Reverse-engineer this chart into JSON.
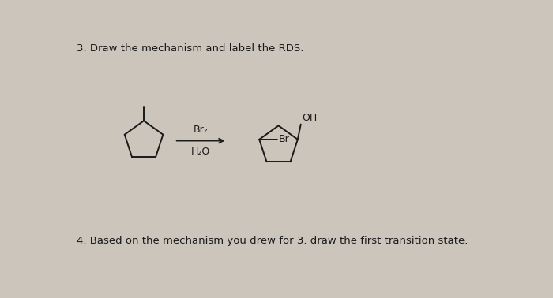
{
  "bg_color": "#ccc5bc",
  "text_color": "#1a1a1a",
  "q3_text": "3. Draw the mechanism and label the RDS.",
  "q4_text": "4. Based on the mechanism you drew for 3. draw the first transition state.",
  "reagent_top": "Br₂",
  "reagent_bot": "H₂O",
  "label_OH": "OH",
  "label_Br": "Br",
  "fig_width": 7.0,
  "fig_height": 3.78,
  "dpi": 100,
  "lw": 1.4
}
